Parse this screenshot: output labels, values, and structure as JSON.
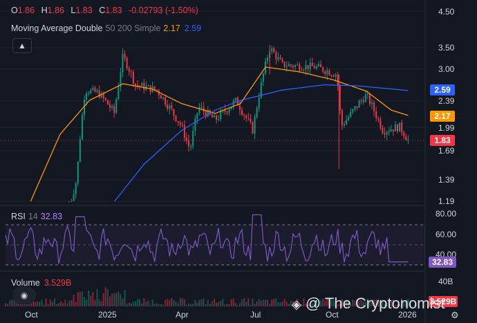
{
  "chart_data": {
    "type": "candlestick",
    "ohlc": {
      "o_label": "O",
      "o": "1.86",
      "h_label": "H",
      "h": "1.86",
      "l_label": "L",
      "l": "1.83",
      "c_label": "C",
      "c": "1.83",
      "change": "-0.02793 (-1.50%)"
    },
    "indicator_ma": {
      "name": "Moving Average Double",
      "params": "50 200 Simple",
      "ma1_value": "2.17",
      "ma2_value": "2.59",
      "ma1_color": "#ff9800",
      "ma2_color": "#2962ff"
    },
    "price_axis": [
      "4.50",
      "3.50",
      "3.00",
      "2.39",
      "1.99",
      "1.69",
      "1.39",
      "1.19"
    ],
    "price_tags": [
      {
        "value": "2.59",
        "color": "#2962ff"
      },
      {
        "value": "2.17",
        "color": "#ff9800"
      },
      {
        "value": "1.83",
        "color": "#f23645"
      }
    ],
    "last_price": 1.83,
    "ma_series": {
      "ma50": [
        [
          0.06,
          1.19
        ],
        [
          0.13,
          1.9
        ],
        [
          0.2,
          2.4
        ],
        [
          0.28,
          2.72
        ],
        [
          0.35,
          2.62
        ],
        [
          0.42,
          2.35
        ],
        [
          0.5,
          2.2
        ],
        [
          0.56,
          2.35
        ],
        [
          0.62,
          3.05
        ],
        [
          0.7,
          2.95
        ],
        [
          0.78,
          2.8
        ],
        [
          0.86,
          2.58
        ],
        [
          0.92,
          2.25
        ],
        [
          0.96,
          2.17
        ]
      ],
      "ma200": [
        [
          0.26,
          1.19
        ],
        [
          0.33,
          1.55
        ],
        [
          0.42,
          1.95
        ],
        [
          0.5,
          2.25
        ],
        [
          0.56,
          2.4
        ],
        [
          0.66,
          2.6
        ],
        [
          0.76,
          2.7
        ],
        [
          0.84,
          2.68
        ],
        [
          0.96,
          2.59
        ]
      ]
    },
    "rsi": {
      "label": "RSI",
      "period": "14",
      "value": "32.83",
      "axis": [
        "80.00",
        "60.00",
        "40.00"
      ],
      "color": "#7e57c2",
      "levels": [
        70,
        50,
        30
      ]
    },
    "volume": {
      "label": "Volume",
      "value": "3.529B",
      "axis": [
        "40B"
      ],
      "tag": "3.529B"
    },
    "x_labels": [
      "Oct",
      "2025",
      "Apr",
      "Jul",
      "Oct",
      "2026"
    ]
  },
  "collapse_icon": "chevron-up-icon",
  "volume_icon": "eye-icon",
  "watermark": "@ The Cryptonomist",
  "settings_icon": "gear-icon"
}
